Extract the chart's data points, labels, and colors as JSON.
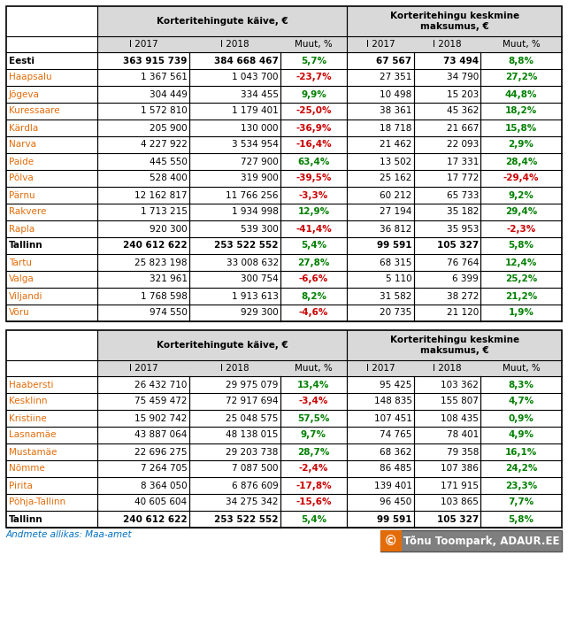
{
  "table1": {
    "header1": "Korteritehingute käive, €",
    "header2": "Korteritehingu keskmine\nmaksumus, €",
    "col_headers": [
      "I 2017",
      "I 2018",
      "Muut, %",
      "I 2017",
      "I 2018",
      "Muut, %"
    ],
    "rows": [
      {
        "name": "Eesti",
        "bold": true,
        "nc": "black",
        "v1": "363 915 739",
        "v2": "384 668 467",
        "p1": "5,7%",
        "p1c": "green",
        "v3": "67 567",
        "v4": "73 494",
        "p2": "8,8%",
        "p2c": "green"
      },
      {
        "name": "Haapsalu",
        "bold": false,
        "nc": "orange",
        "v1": "1 367 561",
        "v2": "1 043 700",
        "p1": "-23,7%",
        "p1c": "red",
        "v3": "27 351",
        "v4": "34 790",
        "p2": "27,2%",
        "p2c": "green"
      },
      {
        "name": "Jõgeva",
        "bold": false,
        "nc": "orange",
        "v1": "304 449",
        "v2": "334 455",
        "p1": "9,9%",
        "p1c": "green",
        "v3": "10 498",
        "v4": "15 203",
        "p2": "44,8%",
        "p2c": "green"
      },
      {
        "name": "Kuressaare",
        "bold": false,
        "nc": "orange",
        "v1": "1 572 810",
        "v2": "1 179 401",
        "p1": "-25,0%",
        "p1c": "red",
        "v3": "38 361",
        "v4": "45 362",
        "p2": "18,2%",
        "p2c": "green"
      },
      {
        "name": "Kärdla",
        "bold": false,
        "nc": "orange",
        "v1": "205 900",
        "v2": "130 000",
        "p1": "-36,9%",
        "p1c": "red",
        "v3": "18 718",
        "v4": "21 667",
        "p2": "15,8%",
        "p2c": "green"
      },
      {
        "name": "Narva",
        "bold": false,
        "nc": "orange",
        "v1": "4 227 922",
        "v2": "3 534 954",
        "p1": "-16,4%",
        "p1c": "red",
        "v3": "21 462",
        "v4": "22 093",
        "p2": "2,9%",
        "p2c": "green"
      },
      {
        "name": "Paide",
        "bold": false,
        "nc": "orange",
        "v1": "445 550",
        "v2": "727 900",
        "p1": "63,4%",
        "p1c": "green",
        "v3": "13 502",
        "v4": "17 331",
        "p2": "28,4%",
        "p2c": "green"
      },
      {
        "name": "Põlva",
        "bold": false,
        "nc": "orange",
        "v1": "528 400",
        "v2": "319 900",
        "p1": "-39,5%",
        "p1c": "red",
        "v3": "25 162",
        "v4": "17 772",
        "p2": "-29,4%",
        "p2c": "red"
      },
      {
        "name": "Pärnu",
        "bold": false,
        "nc": "orange",
        "v1": "12 162 817",
        "v2": "11 766 256",
        "p1": "-3,3%",
        "p1c": "red",
        "v3": "60 212",
        "v4": "65 733",
        "p2": "9,2%",
        "p2c": "green"
      },
      {
        "name": "Rakvere",
        "bold": false,
        "nc": "orange",
        "v1": "1 713 215",
        "v2": "1 934 998",
        "p1": "12,9%",
        "p1c": "green",
        "v3": "27 194",
        "v4": "35 182",
        "p2": "29,4%",
        "p2c": "green"
      },
      {
        "name": "Rapla",
        "bold": false,
        "nc": "orange",
        "v1": "920 300",
        "v2": "539 300",
        "p1": "-41,4%",
        "p1c": "red",
        "v3": "36 812",
        "v4": "35 953",
        "p2": "-2,3%",
        "p2c": "red"
      },
      {
        "name": "Tallinn",
        "bold": true,
        "nc": "black",
        "v1": "240 612 622",
        "v2": "253 522 552",
        "p1": "5,4%",
        "p1c": "green",
        "v3": "99 591",
        "v4": "105 327",
        "p2": "5,8%",
        "p2c": "green"
      },
      {
        "name": "Tartu",
        "bold": false,
        "nc": "orange",
        "v1": "25 823 198",
        "v2": "33 008 632",
        "p1": "27,8%",
        "p1c": "green",
        "v3": "68 315",
        "v4": "76 764",
        "p2": "12,4%",
        "p2c": "green"
      },
      {
        "name": "Valga",
        "bold": false,
        "nc": "orange",
        "v1": "321 961",
        "v2": "300 754",
        "p1": "-6,6%",
        "p1c": "red",
        "v3": "5 110",
        "v4": "6 399",
        "p2": "25,2%",
        "p2c": "green"
      },
      {
        "name": "Viljandi",
        "bold": false,
        "nc": "orange",
        "v1": "1 768 598",
        "v2": "1 913 613",
        "p1": "8,2%",
        "p1c": "green",
        "v3": "31 582",
        "v4": "38 272",
        "p2": "21,2%",
        "p2c": "green"
      },
      {
        "name": "Võru",
        "bold": false,
        "nc": "orange",
        "v1": "974 550",
        "v2": "929 300",
        "p1": "-4,6%",
        "p1c": "red",
        "v3": "20 735",
        "v4": "21 120",
        "p2": "1,9%",
        "p2c": "green"
      }
    ]
  },
  "table2": {
    "header1": "Korteritehingute käive, €",
    "header2": "Korteritehingu keskmine\nmaksumus, €",
    "col_headers": [
      "I 2017",
      "I 2018",
      "Muut, %",
      "I 2017",
      "I 2018",
      "Muut, %"
    ],
    "rows": [
      {
        "name": "Haabersti",
        "bold": false,
        "nc": "orange",
        "v1": "26 432 710",
        "v2": "29 975 079",
        "p1": "13,4%",
        "p1c": "green",
        "v3": "95 425",
        "v4": "103 362",
        "p2": "8,3%",
        "p2c": "green"
      },
      {
        "name": "Kesklinn",
        "bold": false,
        "nc": "orange",
        "v1": "75 459 472",
        "v2": "72 917 694",
        "p1": "-3,4%",
        "p1c": "red",
        "v3": "148 835",
        "v4": "155 807",
        "p2": "4,7%",
        "p2c": "green"
      },
      {
        "name": "Kristiine",
        "bold": false,
        "nc": "orange",
        "v1": "15 902 742",
        "v2": "25 048 575",
        "p1": "57,5%",
        "p1c": "green",
        "v3": "107 451",
        "v4": "108 435",
        "p2": "0,9%",
        "p2c": "green"
      },
      {
        "name": "Lasnamäe",
        "bold": false,
        "nc": "orange",
        "v1": "43 887 064",
        "v2": "48 138 015",
        "p1": "9,7%",
        "p1c": "green",
        "v3": "74 765",
        "v4": "78 401",
        "p2": "4,9%",
        "p2c": "green"
      },
      {
        "name": "Mustamäe",
        "bold": false,
        "nc": "orange",
        "v1": "22 696 275",
        "v2": "29 203 738",
        "p1": "28,7%",
        "p1c": "green",
        "v3": "68 362",
        "v4": "79 358",
        "p2": "16,1%",
        "p2c": "green"
      },
      {
        "name": "Nõmme",
        "bold": false,
        "nc": "orange",
        "v1": "7 264 705",
        "v2": "7 087 500",
        "p1": "-2,4%",
        "p1c": "red",
        "v3": "86 485",
        "v4": "107 386",
        "p2": "24,2%",
        "p2c": "green"
      },
      {
        "name": "Pirita",
        "bold": false,
        "nc": "orange",
        "v1": "8 364 050",
        "v2": "6 876 609",
        "p1": "-17,8%",
        "p1c": "red",
        "v3": "139 401",
        "v4": "171 915",
        "p2": "23,3%",
        "p2c": "green"
      },
      {
        "name": "Põhja-Tallinn",
        "bold": false,
        "nc": "orange",
        "v1": "40 605 604",
        "v2": "34 275 342",
        "p1": "-15,6%",
        "p1c": "red",
        "v3": "96 450",
        "v4": "103 865",
        "p2": "7,7%",
        "p2c": "green"
      },
      {
        "name": "Tallinn",
        "bold": true,
        "nc": "black",
        "v1": "240 612 622",
        "v2": "253 522 552",
        "p1": "5,4%",
        "p1c": "green",
        "v3": "99 591",
        "v4": "105 327",
        "p2": "5,8%",
        "p2c": "green"
      }
    ]
  },
  "footer_text": "Andmete allikas: Maa-amet",
  "copyright_text": "Tõnu Toompark, ADAUR.EE",
  "bg_color": "#ffffff",
  "border_color": "#000000",
  "header_bg": "#d9d9d9",
  "green_color": "#008000",
  "red_color": "#cc0000",
  "footer_color": "#0070c0",
  "copyright_bg": "#7f7f7f",
  "copyright_orange": "#e36c09",
  "name_orange": "#e36c09"
}
